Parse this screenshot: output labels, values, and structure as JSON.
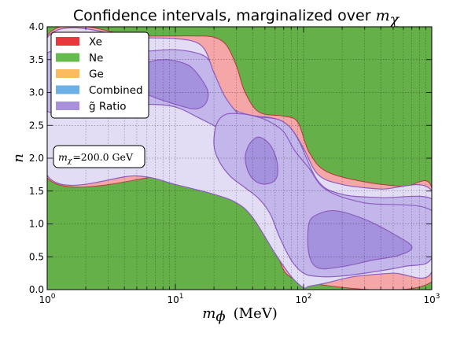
{
  "chart_data": {
    "type": "area",
    "title_prefix": "Confidence intervals, marginalized over ",
    "title_math": "m",
    "title_math_sub": "χ",
    "xlabel_var": "m",
    "xlabel_sub": "ϕ",
    "xlabel_unit": "(MeV)",
    "ylabel": "n",
    "xscale": "log",
    "xlim": [
      1,
      1000
    ],
    "ylim": [
      0,
      4
    ],
    "grid": true,
    "legend_position": "upper-left",
    "xtick_bases": [
      "10",
      "10",
      "10",
      "10"
    ],
    "xtick_exponents": [
      "0",
      "1",
      "2",
      "3"
    ],
    "yticks": [
      "0.0",
      "0.5",
      "1.0",
      "1.5",
      "2.0",
      "2.5",
      "3.0",
      "3.5",
      "4.0"
    ],
    "annotation": "m_χ = 200.0 GeV",
    "annotation_var": "m",
    "annotation_sub": "χ",
    "annotation_value": "=200.0 GeV",
    "legend": [
      {
        "label": "Xe",
        "color": "#e8383d"
      },
      {
        "label": "Ne",
        "color": "#66bb4f"
      },
      {
        "label": "Ge",
        "color": "#fbbb5e"
      },
      {
        "label": "Combined",
        "color": "#6db0e6"
      },
      {
        "label": "g̃ Ratio",
        "color": "#a890db"
      }
    ],
    "regions": [
      {
        "series": "Ne",
        "level": "allowed",
        "polygon": [
          [
            1,
            0
          ],
          [
            1000,
            0
          ],
          [
            1000,
            4
          ],
          [
            1,
            4
          ]
        ]
      },
      {
        "series": "Xe",
        "level": "outer",
        "polygon": [
          [
            1,
            3.86
          ],
          [
            5,
            3.86
          ],
          [
            10,
            3.86
          ],
          [
            15,
            3.86
          ],
          [
            20,
            3.84
          ],
          [
            25,
            3.72
          ],
          [
            30,
            3.4
          ],
          [
            35,
            3.0
          ],
          [
            45,
            2.7
          ],
          [
            70,
            2.64
          ],
          [
            90,
            2.55
          ],
          [
            110,
            2.1
          ],
          [
            150,
            1.8
          ],
          [
            300,
            1.64
          ],
          [
            600,
            1.57
          ],
          [
            1000,
            1.55
          ],
          [
            1000,
            0.12
          ],
          [
            100,
            0.12
          ],
          [
            60,
            0.6
          ],
          [
            40,
            1.2
          ],
          [
            20,
            1.6
          ],
          [
            10,
            1.75
          ],
          [
            1,
            1.7
          ]
        ]
      },
      {
        "series": "g̃ Ratio",
        "level": "outer",
        "polygon": [
          [
            1,
            3.83
          ],
          [
            5,
            3.83
          ],
          [
            10,
            3.82
          ],
          [
            15,
            3.75
          ],
          [
            18,
            3.55
          ],
          [
            20,
            3.2
          ],
          [
            25,
            2.85
          ],
          [
            30,
            2.72
          ],
          [
            40,
            2.65
          ],
          [
            60,
            2.6
          ],
          [
            80,
            2.45
          ],
          [
            100,
            2.15
          ],
          [
            130,
            1.75
          ],
          [
            200,
            1.6
          ],
          [
            400,
            1.53
          ],
          [
            1000,
            1.5
          ],
          [
            1000,
            0.27
          ],
          [
            500,
            0.25
          ],
          [
            250,
            0.2
          ],
          [
            150,
            0.1
          ],
          [
            110,
            0.05
          ],
          [
            100,
            0.03
          ],
          [
            80,
            0.2
          ],
          [
            60,
            0.55
          ],
          [
            40,
            1.1
          ],
          [
            30,
            1.32
          ],
          [
            20,
            1.45
          ],
          [
            10,
            1.6
          ],
          [
            5,
            1.73
          ],
          [
            1,
            1.74
          ]
        ]
      },
      {
        "series": "g̃ Ratio",
        "level": "middle",
        "polygon": [
          [
            1,
            2.72
          ],
          [
            3,
            2.8
          ],
          [
            6,
            2.82
          ],
          [
            10,
            2.78
          ],
          [
            15,
            2.62
          ],
          [
            22,
            2.45
          ],
          [
            30,
            2.25
          ],
          [
            40,
            2.0
          ],
          [
            55,
            1.68
          ],
          [
            80,
            1.38
          ],
          [
            120,
            1.12
          ],
          [
            250,
            0.95
          ],
          [
            600,
            0.9
          ],
          [
            1000,
            0.88
          ],
          [
            1000,
            1.38
          ],
          [
            400,
            1.4
          ],
          [
            200,
            1.45
          ],
          [
            130,
            1.65
          ],
          [
            90,
            2.3
          ],
          [
            70,
            2.55
          ],
          [
            50,
            2.62
          ],
          [
            35,
            2.6
          ],
          [
            25,
            2.9
          ],
          [
            20,
            3.3
          ],
          [
            17,
            3.55
          ],
          [
            10,
            3.65
          ],
          [
            5,
            3.62
          ],
          [
            1,
            3.6
          ]
        ]
      },
      {
        "series": "g̃ Ratio",
        "level": "inner",
        "polygon": [
          [
            4,
            3.25
          ],
          [
            6,
            3.45
          ],
          [
            8,
            3.5
          ],
          [
            10,
            3.48
          ],
          [
            13,
            3.4
          ],
          [
            16,
            3.2
          ],
          [
            18,
            3.0
          ],
          [
            17,
            2.82
          ],
          [
            14,
            2.75
          ],
          [
            10,
            2.82
          ],
          [
            7,
            2.92
          ],
          [
            5,
            3.05
          ]
        ]
      },
      {
        "series": "g̃ Ratio",
        "level": "middle",
        "polygon": [
          [
            20,
            2.2
          ],
          [
            21,
            2.52
          ],
          [
            25,
            2.67
          ],
          [
            35,
            2.67
          ],
          [
            45,
            2.62
          ],
          [
            55,
            2.55
          ],
          [
            70,
            2.4
          ],
          [
            85,
            2.12
          ],
          [
            110,
            1.85
          ],
          [
            150,
            1.52
          ],
          [
            300,
            1.32
          ],
          [
            1000,
            1.2
          ],
          [
            1000,
            0.48
          ],
          [
            600,
            0.35
          ],
          [
            300,
            0.25
          ],
          [
            180,
            0.2
          ],
          [
            130,
            0.2
          ],
          [
            100,
            0.25
          ],
          [
            80,
            0.45
          ],
          [
            65,
            0.8
          ],
          [
            55,
            1.15
          ],
          [
            45,
            1.38
          ],
          [
            35,
            1.55
          ],
          [
            27,
            1.72
          ],
          [
            22,
            1.95
          ]
        ]
      },
      {
        "series": "g̃ Ratio",
        "level": "inner",
        "polygon": [
          [
            35,
            2.0
          ],
          [
            38,
            2.22
          ],
          [
            45,
            2.32
          ],
          [
            55,
            2.2
          ],
          [
            62,
            1.95
          ],
          [
            62,
            1.72
          ],
          [
            55,
            1.62
          ],
          [
            45,
            1.62
          ],
          [
            38,
            1.75
          ]
        ]
      },
      {
        "series": "g̃ Ratio",
        "level": "inner",
        "polygon": [
          [
            110,
            1.0
          ],
          [
            130,
            1.15
          ],
          [
            180,
            1.2
          ],
          [
            300,
            1.07
          ],
          [
            500,
            0.85
          ],
          [
            700,
            0.65
          ],
          [
            550,
            0.52
          ],
          [
            350,
            0.45
          ],
          [
            200,
            0.35
          ],
          [
            130,
            0.33
          ],
          [
            110,
            0.55
          ]
        ]
      }
    ]
  }
}
